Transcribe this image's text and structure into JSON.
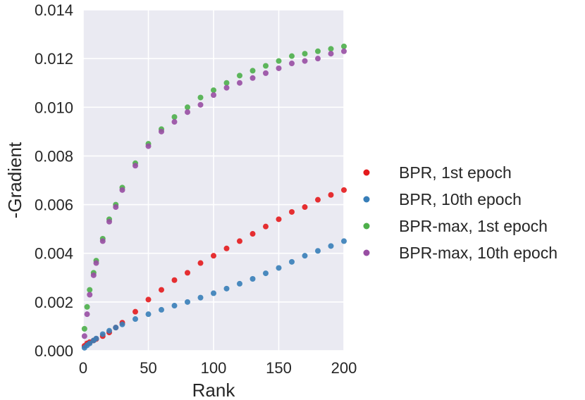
{
  "chart_data": {
    "type": "scatter",
    "title": "",
    "xlabel": "Rank",
    "ylabel": "-Gradient",
    "xlim": [
      0,
      200
    ],
    "ylim": [
      0,
      0.014
    ],
    "xticks": [
      "0",
      "50",
      "100",
      "150",
      "200"
    ],
    "xtick_values": [
      0,
      50,
      100,
      150,
      200
    ],
    "yticks": [
      "0.000",
      "0.002",
      "0.004",
      "0.006",
      "0.008",
      "0.010",
      "0.012",
      "0.014"
    ],
    "ytick_values": [
      0,
      0.002,
      0.004,
      0.006,
      0.008,
      0.01,
      0.012,
      0.014
    ],
    "grid": true,
    "background": "#eaeaf2",
    "legend_position": "right",
    "x": [
      1,
      3,
      5,
      8,
      10,
      15,
      20,
      25,
      30,
      40,
      50,
      60,
      70,
      80,
      90,
      100,
      110,
      120,
      130,
      140,
      150,
      160,
      170,
      180,
      190,
      200
    ],
    "series": [
      {
        "name": "BPR, 1st epoch",
        "color": "#e41a1c",
        "values": [
          0.0002,
          0.0003,
          0.00035,
          0.00042,
          0.00048,
          0.0006,
          0.00075,
          0.00095,
          0.00115,
          0.0016,
          0.0021,
          0.0025,
          0.0029,
          0.0032,
          0.0036,
          0.0039,
          0.0042,
          0.0045,
          0.0048,
          0.0051,
          0.0054,
          0.0057,
          0.0059,
          0.0062,
          0.0064,
          0.0066
        ]
      },
      {
        "name": "BPR, 10th epoch",
        "color": "#377eb8",
        "values": [
          0.00012,
          0.00022,
          0.0003,
          0.00042,
          0.0005,
          0.00068,
          0.00082,
          0.00095,
          0.00108,
          0.0013,
          0.0015,
          0.00168,
          0.00185,
          0.002,
          0.00218,
          0.00236,
          0.00255,
          0.00275,
          0.00295,
          0.00318,
          0.0034,
          0.00365,
          0.0039,
          0.0041,
          0.0043,
          0.0045
        ]
      },
      {
        "name": "BPR-max, 1st epoch",
        "color": "#4daf4a",
        "values": [
          0.0009,
          0.0018,
          0.0025,
          0.0032,
          0.0037,
          0.0046,
          0.0054,
          0.006,
          0.0067,
          0.0077,
          0.0085,
          0.0091,
          0.0096,
          0.01,
          0.0104,
          0.0107,
          0.011,
          0.0113,
          0.0115,
          0.0117,
          0.0119,
          0.0121,
          0.0122,
          0.0123,
          0.0124,
          0.0125
        ]
      },
      {
        "name": "BPR-max, 10th epoch",
        "color": "#984ea3",
        "values": [
          0.0006,
          0.0015,
          0.0023,
          0.0031,
          0.0036,
          0.0045,
          0.0053,
          0.0059,
          0.0066,
          0.0076,
          0.0084,
          0.009,
          0.0094,
          0.0098,
          0.0101,
          0.0105,
          0.0108,
          0.011,
          0.0112,
          0.0114,
          0.0116,
          0.0118,
          0.0119,
          0.012,
          0.0122,
          0.0123
        ]
      }
    ]
  }
}
